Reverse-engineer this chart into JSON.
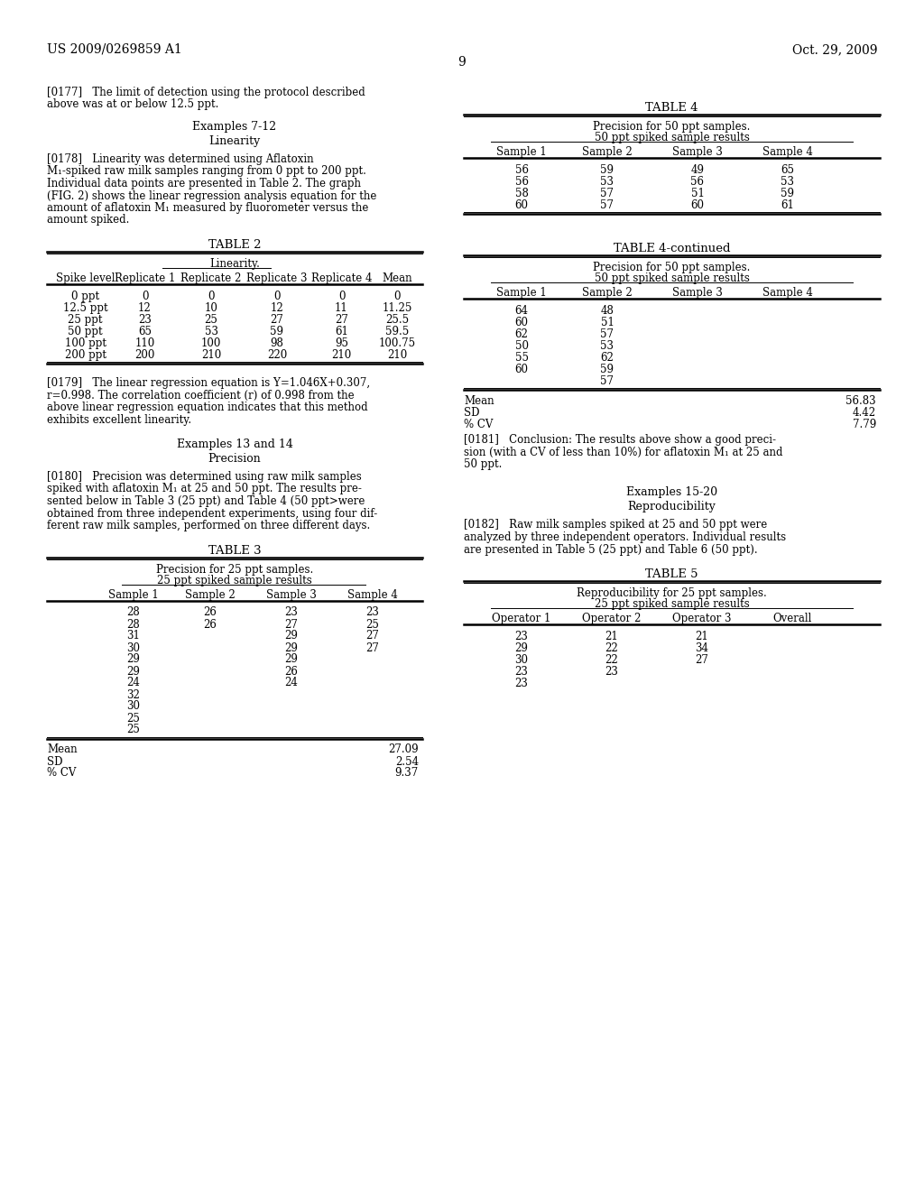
{
  "header_left": "US 2009/0269859 A1",
  "header_right": "Oct. 29, 2009",
  "page_number": "9",
  "background_color": "#ffffff",
  "text_color": "#000000",
  "table2_title": "TABLE 2",
  "table2_subtitle": "Linearity.",
  "table2_headers": [
    "Spike level",
    "Replicate 1",
    "Replicate 2",
    "Replicate 3",
    "Replicate 4",
    "Mean"
  ],
  "table2_rows": [
    [
      "0 ppt",
      "0",
      "0",
      "0",
      "0",
      "0"
    ],
    [
      "12.5 ppt",
      "12",
      "10",
      "12",
      "11",
      "11.25"
    ],
    [
      "25 ppt",
      "23",
      "25",
      "27",
      "27",
      "25.5"
    ],
    [
      "50 ppt",
      "65",
      "53",
      "59",
      "61",
      "59.5"
    ],
    [
      "100 ppt",
      "110",
      "100",
      "98",
      "95",
      "100.75"
    ],
    [
      "200 ppt",
      "200",
      "210",
      "220",
      "210",
      "210"
    ]
  ],
  "table3_title": "TABLE 3",
  "table3_subtitle1": "Precision for 25 ppt samples.",
  "table3_subtitle2": "25 ppt spiked sample results",
  "table3_headers": [
    "Sample 1",
    "Sample 2",
    "Sample 3",
    "Sample 4"
  ],
  "table3_data": [
    [
      "28",
      "26",
      "23",
      "23"
    ],
    [
      "28",
      "26",
      "27",
      "25"
    ],
    [
      "31",
      "",
      "29",
      "27"
    ],
    [
      "30",
      "",
      "29",
      "27"
    ],
    [
      "29",
      "",
      "29",
      ""
    ],
    [
      "29",
      "",
      "26",
      ""
    ],
    [
      "24",
      "",
      "24",
      ""
    ],
    [
      "32",
      "",
      "",
      ""
    ],
    [
      "30",
      "",
      "",
      ""
    ],
    [
      "25",
      "",
      "",
      ""
    ],
    [
      "25",
      "",
      "",
      ""
    ]
  ],
  "table4_title": "TABLE 4",
  "table4_subtitle1": "Precision for 50 ppt samples.",
  "table4_subtitle2": "50 ppt spiked sample results",
  "table4_headers": [
    "Sample 1",
    "Sample 2",
    "Sample 3",
    "Sample 4"
  ],
  "table4_data": [
    [
      "56",
      "59",
      "49",
      "65"
    ],
    [
      "56",
      "53",
      "56",
      "53"
    ],
    [
      "58",
      "57",
      "51",
      "59"
    ],
    [
      "60",
      "57",
      "60",
      "61"
    ]
  ],
  "table4cont_title": "TABLE 4-continued",
  "table4cont_subtitle1": "Precision for 50 ppt samples.",
  "table4cont_subtitle2": "50 ppt spiked sample results",
  "table4cont_headers": [
    "Sample 1",
    "Sample 2",
    "Sample 3",
    "Sample 4"
  ],
  "table4cont_data": [
    [
      "64",
      "48",
      "",
      ""
    ],
    [
      "60",
      "51",
      "",
      ""
    ],
    [
      "62",
      "57",
      "",
      ""
    ],
    [
      "50",
      "53",
      "",
      ""
    ],
    [
      "55",
      "62",
      "",
      ""
    ],
    [
      "60",
      "59",
      "",
      ""
    ],
    [
      "",
      "57",
      "",
      ""
    ]
  ],
  "table5_title": "TABLE 5",
  "table5_subtitle1": "Reproducibility for 25 ppt samples.",
  "table5_subtitle2": "25 ppt spiked sample results",
  "table5_headers": [
    "Operator 1",
    "Operator 2",
    "Operator 3",
    "Overall"
  ],
  "table5_data": [
    [
      "23",
      "21",
      "21",
      ""
    ],
    [
      "29",
      "22",
      "34",
      ""
    ],
    [
      "30",
      "22",
      "27",
      ""
    ],
    [
      "23",
      "23",
      "",
      ""
    ],
    [
      "23",
      "",
      "",
      ""
    ]
  ]
}
